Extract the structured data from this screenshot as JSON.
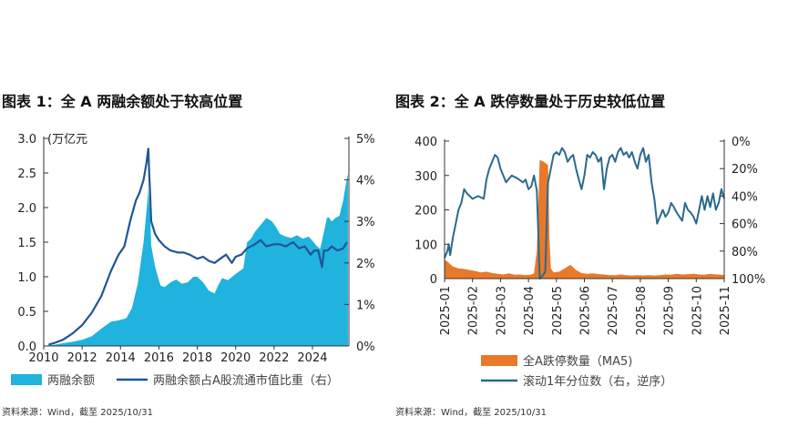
{
  "colors": {
    "margin_area": "#1fb3de",
    "ratio_line": "#1f5597",
    "limit_bar": "#e8782a",
    "percentile_line": "#2a6a8c",
    "axis": "#333333"
  },
  "left": {
    "title": "图表 1：全 A 两融余额处于较高位置",
    "source": "资料来源：Wind，截至 2025/10/31",
    "chart_data": {
      "type": "area+line",
      "title": "全 A 两融余额处于较高位置",
      "unit_label": "(万亿元",
      "x_ticks": [
        "2010",
        "2012",
        "2014",
        "2016",
        "2018",
        "2020",
        "2022",
        "2024"
      ],
      "y_left_ticks": [
        "0.0",
        "0.5",
        "1.0",
        "1.5",
        "2.0",
        "2.5",
        "3.0"
      ],
      "y_right_ticks": [
        "0%",
        "1%",
        "2%",
        "3%",
        "4%",
        "5%"
      ],
      "ylim_left": [
        0,
        3.0
      ],
      "ylim_right": [
        0,
        5
      ],
      "xlim": [
        2010,
        2025.9
      ],
      "legend": [
        "两融余额",
        "两融余额占A股流通市值比重（右）"
      ],
      "series": [
        {
          "name": "两融余额",
          "axis": "left",
          "x": [
            2010.25,
            2010.6,
            2011.0,
            2011.5,
            2012.0,
            2012.5,
            2013.0,
            2013.5,
            2013.9,
            2014.3,
            2014.6,
            2014.9,
            2015.05,
            2015.2,
            2015.3,
            2015.4,
            2015.45,
            2015.5,
            2015.55,
            2015.6,
            2015.7,
            2015.8,
            2015.9,
            2016.0,
            2016.1,
            2016.3,
            2016.6,
            2016.9,
            2017.2,
            2017.5,
            2017.8,
            2018.0,
            2018.3,
            2018.6,
            2018.9,
            2019.1,
            2019.3,
            2019.6,
            2019.9,
            2020.2,
            2020.4,
            2020.6,
            2020.8,
            2021.0,
            2021.3,
            2021.6,
            2021.9,
            2022.1,
            2022.3,
            2022.6,
            2022.9,
            2023.2,
            2023.5,
            2023.8,
            2024.0,
            2024.2,
            2024.4,
            2024.6,
            2024.75,
            2024.85,
            2025.0,
            2025.2,
            2025.4,
            2025.6,
            2025.75,
            2025.85
          ],
          "values": [
            0.005,
            0.02,
            0.04,
            0.06,
            0.09,
            0.14,
            0.25,
            0.35,
            0.37,
            0.4,
            0.55,
            0.9,
            1.2,
            1.5,
            1.8,
            2.1,
            2.27,
            2.05,
            1.9,
            1.45,
            1.3,
            1.15,
            1.05,
            0.95,
            0.87,
            0.85,
            0.92,
            0.96,
            0.9,
            0.92,
            1.0,
            1.0,
            0.92,
            0.8,
            0.76,
            0.88,
            0.98,
            0.95,
            1.02,
            1.08,
            1.12,
            1.5,
            1.55,
            1.65,
            1.75,
            1.85,
            1.8,
            1.72,
            1.62,
            1.58,
            1.56,
            1.6,
            1.55,
            1.58,
            1.52,
            1.45,
            1.4,
            1.65,
            1.85,
            1.86,
            1.8,
            1.85,
            1.88,
            2.1,
            2.35,
            2.49
          ]
        },
        {
          "name": "两融余额占A股流通市值比重（右）",
          "axis": "right",
          "x": [
            2010.25,
            2010.6,
            2011.0,
            2011.5,
            2012.0,
            2012.5,
            2013.0,
            2013.5,
            2013.9,
            2014.2,
            2014.5,
            2014.8,
            2015.0,
            2015.2,
            2015.35,
            2015.45,
            2015.5,
            2015.55,
            2015.6,
            2015.7,
            2015.8,
            2016.0,
            2016.3,
            2016.6,
            2017.0,
            2017.3,
            2017.6,
            2018.0,
            2018.3,
            2018.6,
            2018.9,
            2019.2,
            2019.5,
            2019.8,
            2020.0,
            2020.3,
            2020.6,
            2021.0,
            2021.3,
            2021.6,
            2022.0,
            2022.3,
            2022.6,
            2023.0,
            2023.3,
            2023.6,
            2023.9,
            2024.1,
            2024.3,
            2024.4,
            2024.5,
            2024.6,
            2024.8,
            2025.0,
            2025.3,
            2025.6,
            2025.8
          ],
          "values": [
            0.03,
            0.08,
            0.15,
            0.3,
            0.5,
            0.8,
            1.2,
            1.8,
            2.2,
            2.4,
            3.0,
            3.5,
            3.7,
            4.0,
            4.4,
            4.75,
            4.1,
            3.6,
            3.0,
            2.85,
            2.7,
            2.55,
            2.4,
            2.3,
            2.25,
            2.25,
            2.2,
            2.1,
            2.15,
            2.05,
            2.0,
            2.1,
            2.2,
            2.0,
            2.15,
            2.2,
            2.35,
            2.45,
            2.55,
            2.4,
            2.45,
            2.45,
            2.4,
            2.5,
            2.35,
            2.4,
            2.2,
            2.3,
            2.3,
            2.1,
            1.9,
            2.3,
            2.3,
            2.4,
            2.3,
            2.35,
            2.5
          ]
        }
      ]
    }
  },
  "right": {
    "title": "图表 2：全 A 跌停数量处于历史较低位置",
    "source": "资料来源：Wind，截至 2025/10/31",
    "chart_data": {
      "type": "bar+line",
      "title": "全 A 跌停数量处于历史较低位置",
      "x_ticks": [
        "2025-01",
        "2025-02",
        "2025-03",
        "2025-04",
        "2025-05",
        "2025-06",
        "2025-07",
        "2025-08",
        "2025-09",
        "2025-10",
        "2025-11"
      ],
      "y_left_ticks": [
        "0",
        "100",
        "200",
        "300",
        "400"
      ],
      "y_right_ticks": [
        "0%",
        "20%",
        "40%",
        "60%",
        "80%",
        "100%"
      ],
      "ylim_left": [
        0,
        400
      ],
      "ylim_right_inverted": [
        0,
        100
      ],
      "xlim": [
        0,
        10
      ],
      "legend": [
        "全A跌停数量（MA5)",
        "滚动1年分位数（右，逆序）"
      ],
      "series": [
        {
          "name": "全A跌停数量（MA5)",
          "axis": "left",
          "x": [
            0.0,
            0.1,
            0.2,
            0.3,
            0.5,
            0.7,
            0.9,
            1.1,
            1.3,
            1.5,
            1.7,
            1.9,
            2.1,
            2.3,
            2.5,
            2.7,
            2.9,
            3.1,
            3.2,
            3.3,
            3.35,
            3.4,
            3.55,
            3.7,
            3.75,
            3.8,
            3.9,
            4.1,
            4.3,
            4.5,
            4.7,
            4.9,
            5.1,
            5.3,
            5.5,
            5.7,
            5.9,
            6.1,
            6.3,
            6.5,
            6.7,
            6.9,
            7.1,
            7.3,
            7.5,
            7.7,
            7.9,
            8.1,
            8.3,
            8.5,
            8.7,
            8.9,
            9.1,
            9.3,
            9.5,
            9.7,
            9.9,
            10.0
          ],
          "values": [
            55,
            50,
            42,
            35,
            30,
            28,
            25,
            22,
            18,
            20,
            16,
            14,
            12,
            15,
            11,
            12,
            10,
            12,
            15,
            80,
            200,
            345,
            340,
            330,
            120,
            30,
            18,
            20,
            30,
            40,
            25,
            16,
            14,
            15,
            13,
            12,
            10,
            10,
            12,
            10,
            9,
            10,
            9,
            10,
            9,
            10,
            12,
            11,
            14,
            12,
            13,
            14,
            12,
            11,
            14,
            12,
            11,
            10
          ]
        },
        {
          "name": "滚动1年分位数（右，逆序）",
          "axis": "right",
          "x": [
            0.0,
            0.1,
            0.15,
            0.2,
            0.3,
            0.4,
            0.5,
            0.6,
            0.7,
            0.8,
            1.0,
            1.2,
            1.4,
            1.5,
            1.6,
            1.7,
            1.8,
            1.9,
            2.0,
            2.2,
            2.4,
            2.6,
            2.8,
            2.9,
            3.0,
            3.1,
            3.2,
            3.3,
            3.35,
            3.4,
            3.5,
            3.6,
            3.7,
            3.8,
            3.9,
            4.0,
            4.1,
            4.2,
            4.3,
            4.4,
            4.5,
            4.6,
            4.7,
            4.8,
            4.9,
            5.0,
            5.1,
            5.2,
            5.3,
            5.4,
            5.5,
            5.6,
            5.7,
            5.8,
            5.9,
            6.0,
            6.1,
            6.2,
            6.3,
            6.4,
            6.5,
            6.6,
            6.7,
            6.8,
            6.9,
            7.0,
            7.1,
            7.2,
            7.3,
            7.4,
            7.5,
            7.6,
            7.7,
            7.8,
            7.9,
            8.0,
            8.1,
            8.2,
            8.3,
            8.4,
            8.5,
            8.6,
            8.7,
            8.8,
            8.9,
            9.0,
            9.1,
            9.2,
            9.3,
            9.4,
            9.5,
            9.6,
            9.7,
            9.8,
            9.9,
            10.0
          ],
          "values": [
            85,
            80,
            75,
            83,
            70,
            60,
            50,
            45,
            35,
            38,
            42,
            40,
            42,
            28,
            20,
            15,
            10,
            12,
            20,
            30,
            25,
            27,
            30,
            28,
            35,
            33,
            25,
            36,
            65,
            100,
            98,
            95,
            30,
            20,
            10,
            8,
            10,
            5,
            8,
            15,
            12,
            10,
            20,
            28,
            35,
            25,
            10,
            12,
            8,
            10,
            15,
            12,
            35,
            20,
            12,
            10,
            15,
            8,
            5,
            10,
            8,
            12,
            8,
            15,
            20,
            10,
            5,
            15,
            10,
            30,
            42,
            60,
            55,
            50,
            55,
            52,
            45,
            48,
            52,
            55,
            58,
            45,
            50,
            52,
            55,
            60,
            50,
            40,
            50,
            40,
            48,
            38,
            50,
            45,
            35,
            42
          ]
        }
      ]
    }
  }
}
